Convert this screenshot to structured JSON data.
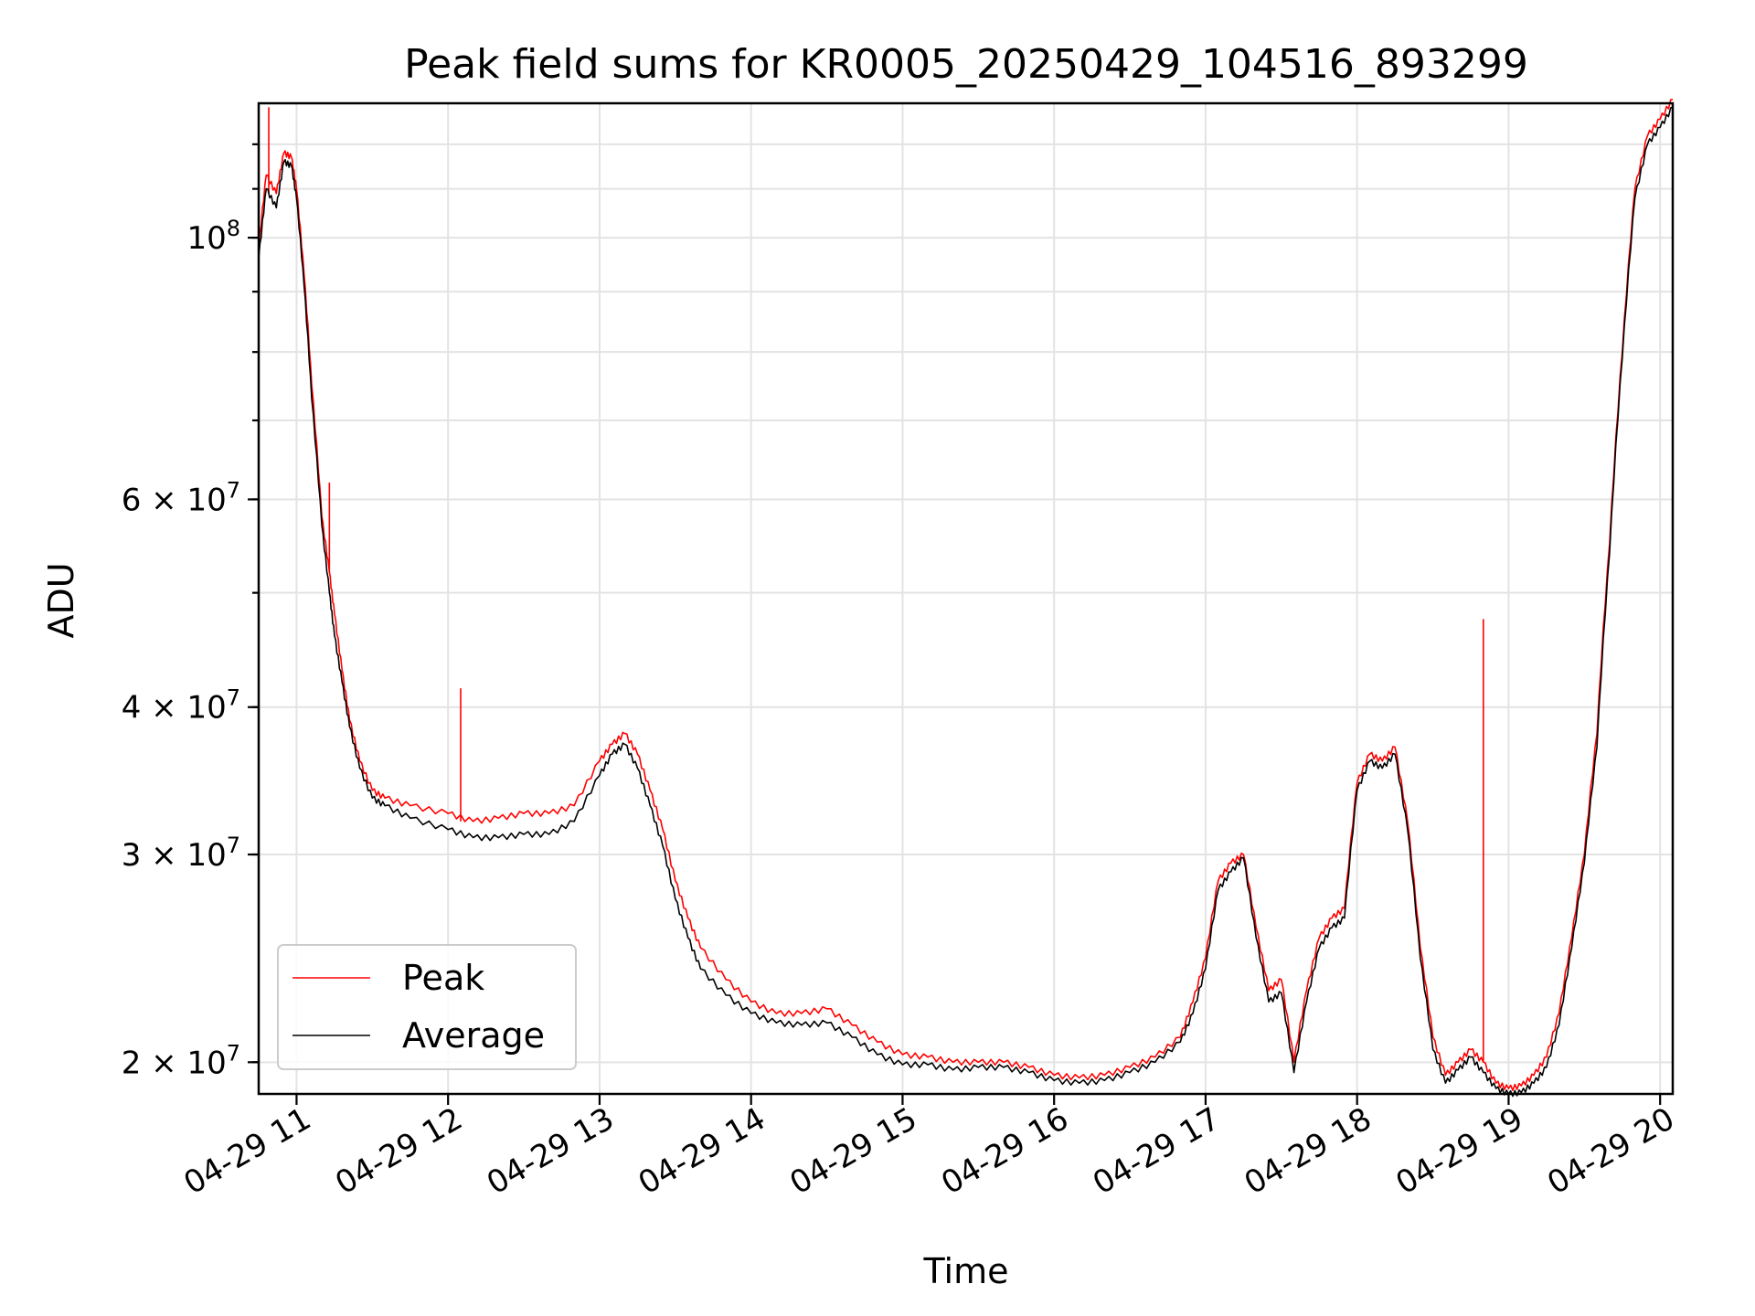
{
  "chart_data": {
    "type": "line",
    "title": "Peak field sums for KR0005_20250429_104516_893299",
    "xlabel": "Time",
    "ylabel": "ADU",
    "yscale": "log",
    "ylim": [
      18800000,
      130000000
    ],
    "xlim": [
      "2025-04-29 10:45",
      "2025-04-29 20:05"
    ],
    "x_ticks": [
      "04-29 11",
      "04-29 12",
      "04-29 13",
      "04-29 14",
      "04-29 15",
      "04-29 16",
      "04-29 17",
      "04-29 18",
      "04-29 19",
      "04-29 20"
    ],
    "y_major_ticks": [
      {
        "value": 20000000,
        "label": "2 × 10^7"
      },
      {
        "value": 30000000,
        "label": "3 × 10^7"
      },
      {
        "value": 40000000,
        "label": "4 × 10^7"
      },
      {
        "value": 60000000,
        "label": "6 × 10^7"
      },
      {
        "value": 100000000,
        "label": "10^8"
      }
    ],
    "grid": true,
    "legend_position": "lower-left",
    "series": [
      {
        "name": "Peak",
        "color": "#ff0000",
        "x": [
          "2025-04-29 10:45",
          "2025-04-29 10:48",
          "2025-04-29 10:52",
          "2025-04-29 10:55",
          "2025-04-29 10:58",
          "2025-04-29 11:00",
          "2025-04-29 11:03",
          "2025-04-29 11:06",
          "2025-04-29 11:10",
          "2025-04-29 11:13",
          "2025-04-29 11:15",
          "2025-04-29 11:18",
          "2025-04-29 11:21",
          "2025-04-29 11:25",
          "2025-04-29 11:30",
          "2025-04-29 11:35",
          "2025-04-29 11:45",
          "2025-04-29 12:00",
          "2025-04-29 12:10",
          "2025-04-29 12:20",
          "2025-04-29 12:30",
          "2025-04-29 12:40",
          "2025-04-29 12:50",
          "2025-04-29 13:00",
          "2025-04-29 13:05",
          "2025-04-29 13:10",
          "2025-04-29 13:15",
          "2025-04-29 13:20",
          "2025-04-29 13:25",
          "2025-04-29 13:30",
          "2025-04-29 13:35",
          "2025-04-29 13:40",
          "2025-04-29 13:50",
          "2025-04-29 14:00",
          "2025-04-29 14:10",
          "2025-04-29 14:20",
          "2025-04-29 14:30",
          "2025-04-29 14:40",
          "2025-04-29 14:50",
          "2025-04-29 15:00",
          "2025-04-29 15:10",
          "2025-04-29 15:20",
          "2025-04-29 15:30",
          "2025-04-29 15:40",
          "2025-04-29 15:50",
          "2025-04-29 16:00",
          "2025-04-29 16:10",
          "2025-04-29 16:20",
          "2025-04-29 16:30",
          "2025-04-29 16:40",
          "2025-04-29 16:50",
          "2025-04-29 16:55",
          "2025-04-29 17:00",
          "2025-04-29 17:05",
          "2025-04-29 17:10",
          "2025-04-29 17:15",
          "2025-04-29 17:20",
          "2025-04-29 17:25",
          "2025-04-29 17:30",
          "2025-04-29 17:35",
          "2025-04-29 17:40",
          "2025-04-29 17:45",
          "2025-04-29 17:50",
          "2025-04-29 17:55",
          "2025-04-29 18:00",
          "2025-04-29 18:05",
          "2025-04-29 18:10",
          "2025-04-29 18:15",
          "2025-04-29 18:20",
          "2025-04-29 18:25",
          "2025-04-29 18:30",
          "2025-04-29 18:35",
          "2025-04-29 18:40",
          "2025-04-29 18:45",
          "2025-04-29 18:50",
          "2025-04-29 18:55",
          "2025-04-29 19:00",
          "2025-04-29 19:05",
          "2025-04-29 19:10",
          "2025-04-29 19:15",
          "2025-04-29 19:20",
          "2025-04-29 19:25",
          "2025-04-29 19:30",
          "2025-04-29 19:35",
          "2025-04-29 19:40",
          "2025-04-29 19:45",
          "2025-04-29 19:50",
          "2025-04-29 19:55",
          "2025-04-29 20:00",
          "2025-04-29 20:05"
        ],
        "y": [
          98000000,
          113000000,
          109000000,
          118000000,
          117000000,
          110000000,
          93000000,
          75000000,
          58000000,
          52000000,
          48000000,
          43000000,
          39000000,
          36000000,
          34000000,
          33500000,
          33000000,
          32500000,
          32000000,
          32200000,
          32500000,
          32500000,
          33000000,
          36000000,
          37200000,
          38000000,
          36500000,
          34000000,
          31500000,
          28500000,
          26500000,
          25000000,
          23500000,
          22500000,
          22000000,
          22000000,
          22200000,
          21500000,
          20800000,
          20300000,
          20200000,
          20000000,
          20000000,
          20000000,
          19800000,
          19500000,
          19400000,
          19500000,
          19800000,
          20200000,
          21000000,
          22500000,
          24500000,
          28500000,
          29500000,
          30000000,
          26000000,
          23000000,
          23500000,
          20000000,
          23000000,
          25500000,
          26500000,
          27000000,
          34500000,
          36500000,
          36000000,
          37000000,
          32000000,
          25000000,
          21000000,
          19500000,
          20000000,
          20500000,
          20000000,
          19200000,
          19000000,
          19100000,
          19500000,
          20200000,
          22000000,
          25500000,
          30000000,
          38000000,
          55000000,
          80000000,
          110000000,
          122000000,
          126000000,
          131000000
        ],
        "spikes": [
          {
            "x": "2025-04-29 10:49",
            "y": 129000000
          },
          {
            "x": "2025-04-29 11:13",
            "y": 62000000
          },
          {
            "x": "2025-04-29 12:05",
            "y": 41500000
          },
          {
            "x": "2025-04-29 18:50",
            "y": 47500000
          }
        ]
      },
      {
        "name": "Average",
        "color": "#000000",
        "x": [
          "2025-04-29 10:45",
          "2025-04-29 10:48",
          "2025-04-29 10:52",
          "2025-04-29 10:55",
          "2025-04-29 10:58",
          "2025-04-29 11:00",
          "2025-04-29 11:03",
          "2025-04-29 11:06",
          "2025-04-29 11:10",
          "2025-04-29 11:13",
          "2025-04-29 11:15",
          "2025-04-29 11:18",
          "2025-04-29 11:21",
          "2025-04-29 11:25",
          "2025-04-29 11:30",
          "2025-04-29 11:35",
          "2025-04-29 11:45",
          "2025-04-29 12:00",
          "2025-04-29 12:10",
          "2025-04-29 12:20",
          "2025-04-29 12:30",
          "2025-04-29 12:40",
          "2025-04-29 12:50",
          "2025-04-29 13:00",
          "2025-04-29 13:05",
          "2025-04-29 13:10",
          "2025-04-29 13:15",
          "2025-04-29 13:20",
          "2025-04-29 13:25",
          "2025-04-29 13:30",
          "2025-04-29 13:35",
          "2025-04-29 13:40",
          "2025-04-29 13:50",
          "2025-04-29 14:00",
          "2025-04-29 14:10",
          "2025-04-29 14:20",
          "2025-04-29 14:30",
          "2025-04-29 14:40",
          "2025-04-29 14:50",
          "2025-04-29 15:00",
          "2025-04-29 15:10",
          "2025-04-29 15:20",
          "2025-04-29 15:30",
          "2025-04-29 15:40",
          "2025-04-29 15:50",
          "2025-04-29 16:00",
          "2025-04-29 16:10",
          "2025-04-29 16:20",
          "2025-04-29 16:30",
          "2025-04-29 16:40",
          "2025-04-29 16:50",
          "2025-04-29 16:55",
          "2025-04-29 17:00",
          "2025-04-29 17:05",
          "2025-04-29 17:10",
          "2025-04-29 17:15",
          "2025-04-29 17:20",
          "2025-04-29 17:25",
          "2025-04-29 17:30",
          "2025-04-29 17:35",
          "2025-04-29 17:40",
          "2025-04-29 17:45",
          "2025-04-29 17:50",
          "2025-04-29 17:55",
          "2025-04-29 18:00",
          "2025-04-29 18:05",
          "2025-04-29 18:10",
          "2025-04-29 18:15",
          "2025-04-29 18:20",
          "2025-04-29 18:25",
          "2025-04-29 18:30",
          "2025-04-29 18:35",
          "2025-04-29 18:40",
          "2025-04-29 18:45",
          "2025-04-29 18:50",
          "2025-04-29 18:55",
          "2025-04-29 19:00",
          "2025-04-29 19:05",
          "2025-04-29 19:10",
          "2025-04-29 19:15",
          "2025-04-29 19:20",
          "2025-04-29 19:25",
          "2025-04-29 19:30",
          "2025-04-29 19:35",
          "2025-04-29 19:40",
          "2025-04-29 19:45",
          "2025-04-29 19:50",
          "2025-04-29 19:55",
          "2025-04-29 20:00",
          "2025-04-29 20:05"
        ],
        "y": [
          96000000,
          110000000,
          106000000,
          116000000,
          115000000,
          108000000,
          91000000,
          73000000,
          57000000,
          50000000,
          46000000,
          42000000,
          38500000,
          35500000,
          33500000,
          33000000,
          32200000,
          31500000,
          31000000,
          31000000,
          31200000,
          31200000,
          32000000,
          35000000,
          36500000,
          37200000,
          35500000,
          33000000,
          30500000,
          27500000,
          25500000,
          24000000,
          22800000,
          22000000,
          21600000,
          21500000,
          21600000,
          21000000,
          20300000,
          19900000,
          19900000,
          19700000,
          19800000,
          19800000,
          19600000,
          19300000,
          19200000,
          19300000,
          19600000,
          20000000,
          20800000,
          22000000,
          24000000,
          28000000,
          29000000,
          29800000,
          25500000,
          22500000,
          22900000,
          19600000,
          22500000,
          25000000,
          26000000,
          26500000,
          34000000,
          36000000,
          35500000,
          36500000,
          31500000,
          24500000,
          20500000,
          19200000,
          19700000,
          20200000,
          19600000,
          19000000,
          18800000,
          18850000,
          19200000,
          19800000,
          21500000,
          25000000,
          29500000,
          37000000,
          54000000,
          79000000,
          108000000,
          120000000,
          124000000,
          129000000
        ]
      }
    ]
  }
}
